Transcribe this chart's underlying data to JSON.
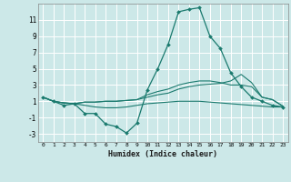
{
  "xlabel": "Humidex (Indice chaleur)",
  "background_color": "#cce8e8",
  "grid_color": "#ffffff",
  "line_color": "#1a7a6e",
  "xlim": [
    -0.5,
    23.5
  ],
  "ylim": [
    -4,
    13
  ],
  "xticks": [
    0,
    1,
    2,
    3,
    4,
    5,
    6,
    7,
    8,
    9,
    10,
    11,
    12,
    13,
    14,
    15,
    16,
    17,
    18,
    19,
    20,
    21,
    22,
    23
  ],
  "yticks": [
    -3,
    -1,
    1,
    3,
    5,
    7,
    9,
    11
  ],
  "series": [
    [
      1.5,
      1.0,
      0.5,
      0.7,
      -0.5,
      -0.5,
      -1.8,
      -2.1,
      -2.9,
      -1.7,
      2.4,
      5.0,
      8.0,
      12.0,
      12.3,
      12.5,
      9.0,
      7.5,
      4.5,
      2.8,
      1.5,
      1.0,
      0.5,
      0.3
    ],
    [
      1.5,
      1.0,
      0.8,
      0.7,
      0.9,
      0.9,
      1.0,
      1.0,
      1.1,
      1.2,
      1.5,
      1.8,
      2.0,
      2.5,
      2.8,
      3.0,
      3.1,
      3.2,
      3.5,
      4.3,
      3.3,
      1.5,
      1.2,
      0.4
    ],
    [
      1.5,
      1.0,
      0.8,
      0.7,
      0.9,
      0.9,
      1.0,
      1.0,
      1.1,
      1.2,
      1.8,
      2.2,
      2.5,
      3.0,
      3.3,
      3.5,
      3.5,
      3.3,
      3.0,
      3.0,
      2.8,
      1.5,
      1.2,
      0.4
    ],
    [
      1.5,
      1.0,
      0.8,
      0.7,
      0.5,
      0.3,
      0.2,
      0.2,
      0.3,
      0.5,
      0.7,
      0.8,
      0.9,
      1.0,
      1.0,
      1.0,
      0.9,
      0.8,
      0.7,
      0.6,
      0.5,
      0.4,
      0.3,
      0.3
    ]
  ]
}
